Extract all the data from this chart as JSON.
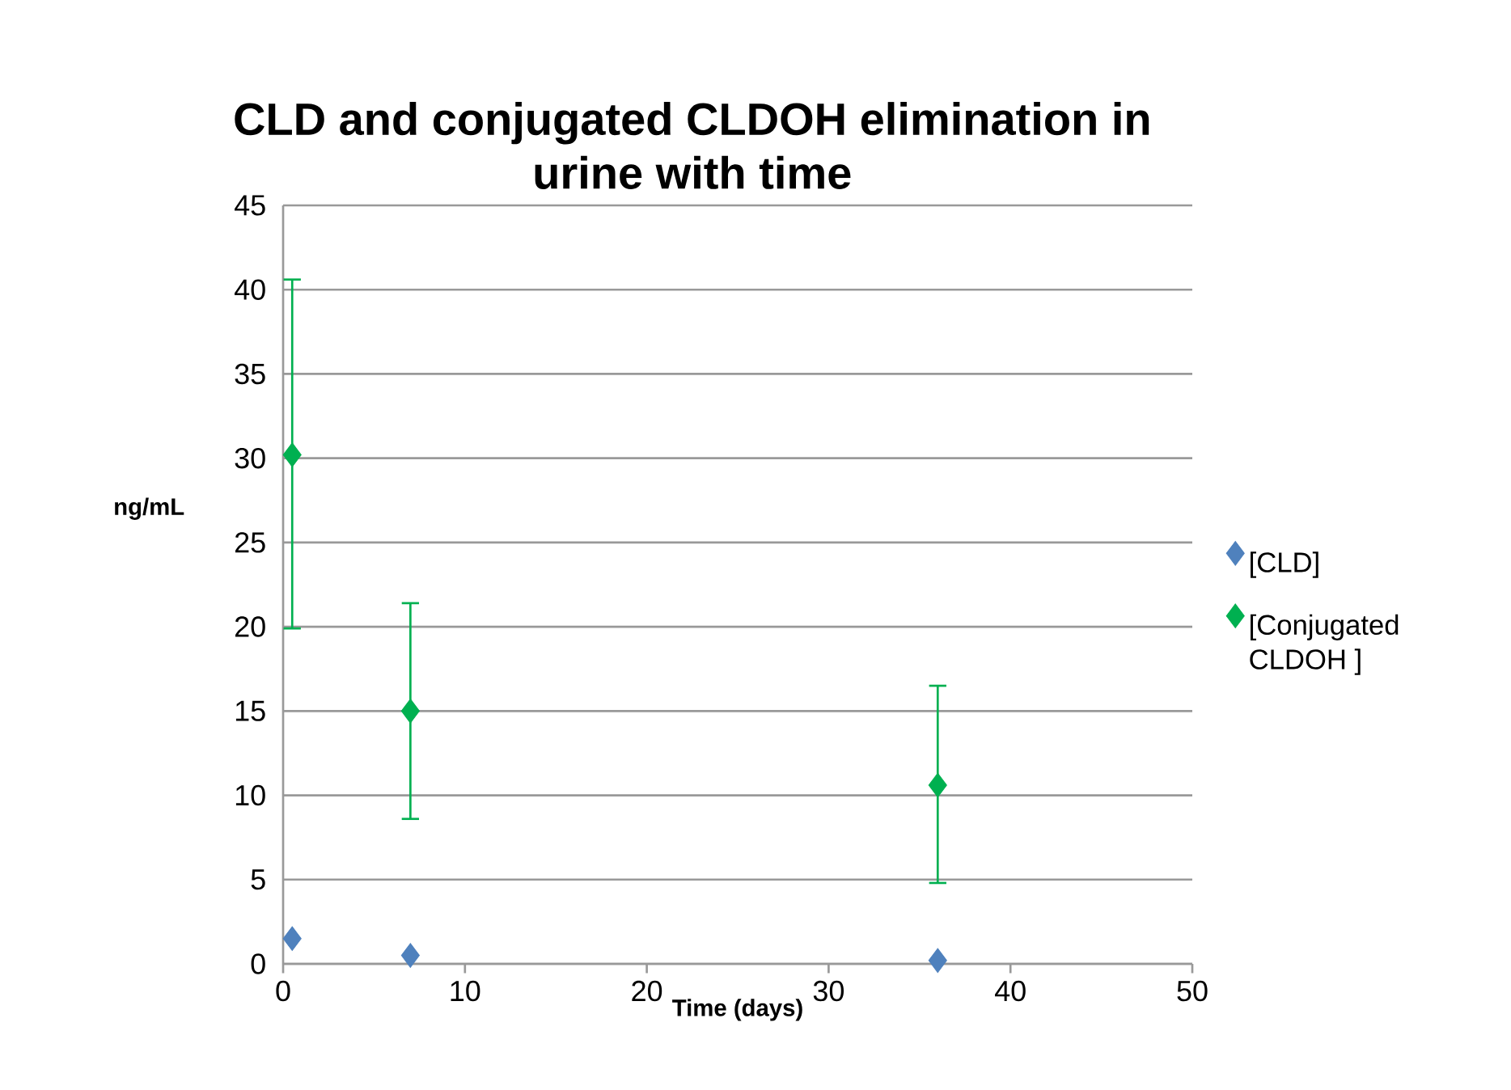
{
  "chart_data": {
    "type": "scatter",
    "title": "CLD and conjugated CLDOH elimination in urine with time",
    "xlabel": "Time (days)",
    "ylabel": "ng/mL",
    "x": [
      0.5,
      7,
      36
    ],
    "series": [
      {
        "name": "[CLD]",
        "color": "#4f81bd",
        "values": [
          1.5,
          0.5,
          0.2
        ]
      },
      {
        "name": "[Conjugated CLDOH ]",
        "color": "#00b050",
        "values": [
          30.2,
          15.0,
          10.6
        ],
        "errors": [
          [
            19.9,
            40.6
          ],
          [
            8.6,
            21.4
          ],
          [
            4.8,
            16.5
          ]
        ]
      }
    ],
    "xlim": [
      0,
      50
    ],
    "xticks": [
      0,
      10,
      20,
      30,
      40,
      50
    ],
    "ylim": [
      0,
      45
    ],
    "yticks": [
      0,
      5,
      10,
      15,
      20,
      25,
      30,
      35,
      40,
      45
    ],
    "grid": "y",
    "legend": "right",
    "marker": "diamond"
  }
}
